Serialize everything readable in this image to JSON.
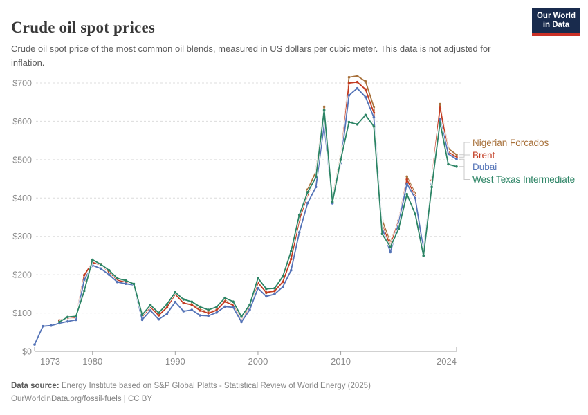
{
  "header": {
    "title": "Crude oil spot prices",
    "subtitle": "Crude oil spot price of the most common oil blends, measured in US dollars per cubic meter. This data is not adjusted for inflation.",
    "logo": {
      "line1": "Our World",
      "line2": "in Data",
      "bg_color": "#192B4D",
      "bar_color": "#CB3127"
    }
  },
  "footer": {
    "source_label": "Data source:",
    "source_text": "Energy Institute based on S&P Global Platts - Statistical Review of World Energy (2025)",
    "license_line": "OurWorldinData.org/fossil-fuels | CC BY"
  },
  "chart_data": {
    "type": "line",
    "title": "Crude oil spot prices",
    "unit": "US dollars per cubic meter",
    "grid": "horizontal-dashed",
    "legend_position": "right-of-line-ends",
    "y_tick_prefix": "$",
    "y_ticks": [
      0,
      100,
      200,
      300,
      400,
      500,
      600,
      700
    ],
    "ylim": [
      0,
      730
    ],
    "x_ticks": [
      1973,
      1980,
      1990,
      2000,
      2010,
      2024
    ],
    "x": [
      1973,
      1974,
      1975,
      1976,
      1977,
      1978,
      1979,
      1980,
      1981,
      1982,
      1983,
      1984,
      1985,
      1986,
      1987,
      1988,
      1989,
      1990,
      1991,
      1992,
      1993,
      1994,
      1995,
      1996,
      1997,
      1998,
      1999,
      2000,
      2001,
      2002,
      2003,
      2004,
      2005,
      2006,
      2007,
      2008,
      2009,
      2010,
      2011,
      2012,
      2013,
      2014,
      2015,
      2016,
      2017,
      2018,
      2019,
      2020,
      2021,
      2022,
      2023,
      2024
    ],
    "series": [
      {
        "name": "Nigerian Forcados",
        "color": "#A8713B",
        "values": [
          null,
          null,
          null,
          81,
          89.4,
          85.9,
          184,
          232.6,
          227.6,
          209.4,
          185.8,
          180.3,
          174.6,
          91,
          115.7,
          94.4,
          115.1,
          150,
          126.5,
          123.4,
          109.5,
          102.2,
          108.6,
          133.1,
          121.6,
          79.4,
          113.2,
          178.8,
          152.4,
          157.5,
          180.3,
          239.8,
          350.3,
          421.9,
          468.5,
          638,
          398.5,
          509.8,
          714.9,
          718.4,
          704.2,
          637.5,
          342.2,
          283.9,
          341.6,
          455.9,
          411.6,
          267.6,
          445,
          645,
          529,
          513
        ]
      },
      {
        "name": "Brent",
        "color": "#C23B21",
        "values": [
          null,
          null,
          null,
          80.5,
          87.6,
          88.2,
          198.8,
          231.7,
          226,
          207.4,
          185.9,
          181,
          173.4,
          90.8,
          116,
          93.8,
          114.7,
          149.3,
          125.8,
          121.5,
          106.7,
          99.5,
          107.1,
          130,
          120.1,
          80,
          113,
          179.3,
          153.7,
          157.4,
          181.3,
          240.7,
          342.9,
          409.7,
          455.3,
          611.8,
          387.9,
          500.1,
          699.8,
          702.4,
          683.4,
          622.4,
          329.5,
          275.1,
          340.9,
          448.5,
          403.9,
          263.2,
          446,
          637.3,
          519.8,
          506.5
        ]
      },
      {
        "name": "Dubai",
        "color": "#5473B7",
        "values": [
          17.8,
          65.5,
          67.3,
          73.2,
          77.9,
          82,
          187.1,
          224.5,
          215.9,
          200,
          181,
          176.5,
          173.2,
          82.4,
          106.6,
          83.5,
          98.2,
          128.6,
          104.6,
          108,
          93.9,
          92.7,
          101.3,
          116.5,
          114.7,
          76.8,
          108.5,
          164.8,
          143.5,
          149.3,
          168.4,
          211.6,
          310.4,
          386.8,
          428.9,
          593.4,
          386.1,
          491,
          667.9,
          686.1,
          663.4,
          610.6,
          322,
          259.1,
          334.2,
          437.2,
          399.6,
          265.6,
          435.5,
          605.7,
          515,
          501.1
        ]
      },
      {
        "name": "West Texas Intermediate",
        "color": "#2C8465",
        "values": [
          null,
          null,
          null,
          76.9,
          89.4,
          91.5,
          157.8,
          238.8,
          227,
          211.7,
          190.6,
          184.9,
          176,
          95,
          120.7,
          100.4,
          123,
          154,
          135.5,
          129.4,
          116.1,
          108.3,
          115.9,
          139.4,
          129.6,
          90.5,
          121.5,
          191,
          163.1,
          164.5,
          195.4,
          261,
          356,
          415.3,
          454.1,
          629.4,
          389.5,
          499.7,
          597.8,
          592.1,
          616.4,
          586.7,
          306.4,
          272.6,
          319.5,
          410.1,
          358.5,
          249.6,
          428.6,
          596.9,
          488,
          482
        ]
      }
    ]
  }
}
